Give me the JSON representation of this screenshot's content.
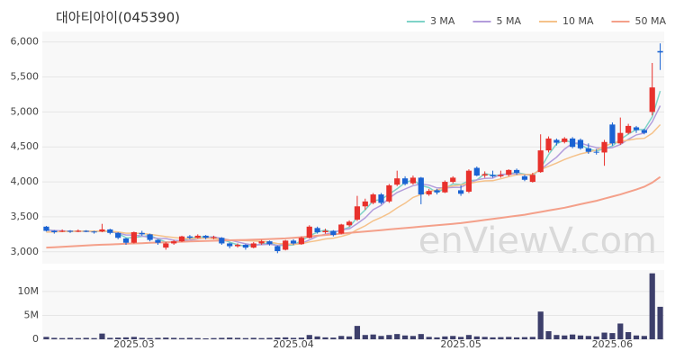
{
  "watermark": "enViewV.com",
  "chart_data": [
    {
      "type": "candlestick",
      "title": "대아티아이(045390)",
      "categories": [
        null,
        null,
        null,
        null,
        null,
        null,
        null,
        null,
        null,
        null,
        null,
        "2025.03",
        null,
        null,
        null,
        null,
        null,
        null,
        null,
        null,
        null,
        null,
        null,
        null,
        null,
        null,
        null,
        null,
        null,
        null,
        null,
        "2025.04",
        null,
        null,
        null,
        null,
        null,
        null,
        null,
        null,
        null,
        null,
        null,
        null,
        null,
        null,
        null,
        null,
        null,
        null,
        null,
        null,
        "2025.05",
        null,
        null,
        null,
        null,
        null,
        null,
        null,
        null,
        null,
        null,
        null,
        null,
        null,
        null,
        null,
        null,
        null,
        null,
        "2025.06",
        null,
        null,
        null,
        null,
        null,
        null
      ],
      "open": [
        3360,
        3300,
        3290,
        3300,
        3290,
        3300,
        3290,
        3290,
        3320,
        3270,
        3190,
        3130,
        3270,
        3250,
        3170,
        3060,
        3120,
        3150,
        3220,
        3200,
        3230,
        3200,
        3200,
        3120,
        3080,
        3100,
        3060,
        3120,
        3150,
        3080,
        3030,
        3160,
        3110,
        3200,
        3340,
        3280,
        3300,
        3260,
        3380,
        3460,
        3650,
        3700,
        3820,
        3720,
        3960,
        4050,
        3980,
        4060,
        3820,
        3880,
        3850,
        4000,
        3880,
        3860,
        4200,
        4090,
        4100,
        4080,
        4100,
        4170,
        4080,
        4000,
        4140,
        4450,
        4600,
        4570,
        4620,
        4600,
        4480,
        4430,
        4420,
        4820,
        4550,
        4700,
        4780,
        4740,
        5000,
        5870
      ],
      "high": [
        3370,
        3310,
        3320,
        3310,
        3320,
        3310,
        3300,
        3400,
        3330,
        3280,
        3200,
        3290,
        3300,
        3260,
        3180,
        3140,
        3170,
        3230,
        3240,
        3250,
        3240,
        3230,
        3210,
        3130,
        3120,
        3110,
        3140,
        3170,
        3160,
        3090,
        3170,
        3180,
        3220,
        3380,
        3360,
        3330,
        3310,
        3400,
        3450,
        3800,
        3760,
        3840,
        3840,
        3970,
        4160,
        4080,
        4090,
        4070,
        3900,
        3900,
        4020,
        4080,
        3950,
        4180,
        4220,
        4150,
        4160,
        4160,
        4180,
        4190,
        4100,
        4130,
        4680,
        4650,
        4620,
        4640,
        4640,
        4620,
        4550,
        4470,
        4600,
        4850,
        4920,
        4830,
        4800,
        4760,
        5700,
        5980
      ],
      "low": [
        3290,
        3260,
        3280,
        3270,
        3280,
        3280,
        3260,
        3280,
        3250,
        3180,
        3100,
        3120,
        3230,
        3150,
        3100,
        3030,
        3100,
        3140,
        3180,
        3190,
        3180,
        3180,
        3100,
        3050,
        3060,
        3030,
        3050,
        3100,
        3090,
        2980,
        3020,
        3100,
        3100,
        3190,
        3260,
        3260,
        3220,
        3250,
        3360,
        3440,
        3600,
        3680,
        3680,
        3700,
        3940,
        3950,
        3960,
        3680,
        3800,
        3820,
        3840,
        3980,
        3800,
        3840,
        4080,
        4060,
        4060,
        4060,
        4080,
        4100,
        4010,
        3990,
        4130,
        4420,
        4520,
        4550,
        4480,
        4460,
        4400,
        4390,
        4230,
        4520,
        4530,
        4680,
        4700,
        4680,
        4950,
        5600
      ],
      "close": [
        3300,
        3280,
        3300,
        3290,
        3300,
        3290,
        3280,
        3320,
        3270,
        3200,
        3130,
        3280,
        3250,
        3170,
        3130,
        3120,
        3150,
        3220,
        3200,
        3230,
        3200,
        3210,
        3120,
        3080,
        3100,
        3060,
        3120,
        3150,
        3110,
        3010,
        3160,
        3120,
        3200,
        3360,
        3280,
        3300,
        3240,
        3390,
        3430,
        3650,
        3720,
        3820,
        3700,
        3950,
        4050,
        3970,
        4060,
        3820,
        3870,
        3850,
        4000,
        4060,
        3830,
        4160,
        4090,
        4110,
        4080,
        4100,
        4170,
        4130,
        4030,
        4100,
        4450,
        4620,
        4560,
        4620,
        4500,
        4480,
        4430,
        4420,
        4570,
        4550,
        4700,
        4800,
        4740,
        4700,
        5350,
        5850
      ],
      "series": [
        {
          "name": "3 MA",
          "color": "#7fd3c8",
          "values": [
            3320,
            3300,
            3293,
            3290,
            3297,
            3293,
            3290,
            3297,
            3290,
            3263,
            3200,
            3203,
            3220,
            3233,
            3183,
            3140,
            3133,
            3163,
            3190,
            3217,
            3210,
            3213,
            3177,
            3137,
            3100,
            3080,
            3093,
            3110,
            3127,
            3090,
            3093,
            3097,
            3160,
            3227,
            3280,
            3313,
            3273,
            3310,
            3353,
            3490,
            3600,
            3730,
            3747,
            3823,
            3900,
            3990,
            4027,
            3950,
            3917,
            3847,
            3907,
            3970,
            3963,
            4017,
            4027,
            4120,
            4093,
            4097,
            4117,
            4133,
            4110,
            4087,
            4193,
            4390,
            4543,
            4600,
            4560,
            4533,
            4470,
            4443,
            4473,
            4513,
            4607,
            4683,
            4747,
            4747,
            4930,
            5300
          ]
        },
        {
          "name": "5 MA",
          "color": "#b39ddb",
          "values": [
            3310,
            3305,
            3300,
            3295,
            3294,
            3292,
            3292,
            3298,
            3292,
            3272,
            3240,
            3240,
            3226,
            3206,
            3192,
            3190,
            3164,
            3158,
            3164,
            3184,
            3200,
            3212,
            3192,
            3168,
            3142,
            3114,
            3096,
            3102,
            3108,
            3090,
            3110,
            3110,
            3120,
            3170,
            3224,
            3252,
            3276,
            3314,
            3328,
            3402,
            3486,
            3602,
            3664,
            3768,
            3848,
            3898,
            3946,
            3970,
            3954,
            3914,
            3914,
            3920,
            3922,
            3980,
            4028,
            4050,
            4054,
            4108,
            4110,
            4118,
            4102,
            4106,
            4176,
            4266,
            4352,
            4470,
            4550,
            4556,
            4518,
            4490,
            4480,
            4490,
            4534,
            4608,
            4672,
            4698,
            4858,
            5088
          ]
        },
        {
          "name": "10 MA",
          "color": "#f5c28a",
          "values": [
            3280,
            3285,
            3290,
            3292,
            3294,
            3295,
            3294,
            3296,
            3294,
            3283,
            3266,
            3266,
            3263,
            3250,
            3234,
            3217,
            3204,
            3194,
            3187,
            3190,
            3197,
            3190,
            3177,
            3168,
            3165,
            3159,
            3156,
            3149,
            3140,
            3118,
            3114,
            3105,
            3114,
            3142,
            3160,
            3184,
            3196,
            3220,
            3252,
            3316,
            3372,
            3442,
            3492,
            3551,
            3628,
            3695,
            3777,
            3820,
            3864,
            3884,
            3919,
            3943,
            3956,
            3977,
            4000,
            4014,
            4016,
            4044,
            4074,
            4102,
            4105,
            4109,
            4176,
            4222,
            4269,
            4320,
            4362,
            4400,
            4426,
            4455,
            4509,
            4554,
            4579,
            4597,
            4615,
            4623,
            4696,
            4818
          ]
        },
        {
          "name": "50 MA",
          "color": "#f4a08a",
          "values": [
            3060,
            3066,
            3072,
            3078,
            3084,
            3090,
            3096,
            3101,
            3106,
            3111,
            3116,
            3120,
            3124,
            3128,
            3132,
            3136,
            3140,
            3144,
            3148,
            3152,
            3155,
            3158,
            3161,
            3164,
            3167,
            3170,
            3174,
            3178,
            3182,
            3187,
            3192,
            3200,
            3210,
            3220,
            3230,
            3240,
            3250,
            3260,
            3270,
            3280,
            3290,
            3300,
            3310,
            3320,
            3330,
            3340,
            3350,
            3360,
            3370,
            3380,
            3390,
            3400,
            3410,
            3425,
            3440,
            3455,
            3470,
            3485,
            3500,
            3515,
            3530,
            3550,
            3570,
            3590,
            3610,
            3630,
            3655,
            3680,
            3705,
            3730,
            3760,
            3790,
            3820,
            3855,
            3890,
            3930,
            3990,
            4070
          ]
        }
      ],
      "up_color": "#e8312c",
      "down_color": "#1a63d3",
      "ylim": [
        2830,
        6150
      ],
      "yticks": [
        {
          "value": 3000,
          "label": "3,000"
        },
        {
          "value": 3500,
          "label": "3,500"
        },
        {
          "value": 4000,
          "label": "4,000"
        },
        {
          "value": 4500,
          "label": "4,500"
        },
        {
          "value": 5000,
          "label": "5,000"
        },
        {
          "value": 5500,
          "label": "5,500"
        },
        {
          "value": 6000,
          "label": "6,000"
        }
      ],
      "grid": true,
      "legend": "top-right"
    },
    {
      "type": "bar",
      "color": "#3d3f6b",
      "values": [
        500000,
        300000,
        250000,
        300000,
        250000,
        300000,
        250000,
        1200000,
        300000,
        350000,
        400000,
        500000,
        300000,
        250000,
        300000,
        350000,
        300000,
        250000,
        300000,
        250000,
        200000,
        250000,
        300000,
        350000,
        300000,
        250000,
        300000,
        250000,
        300000,
        350000,
        400000,
        300000,
        350000,
        900000,
        600000,
        400000,
        350000,
        700000,
        600000,
        2800000,
        900000,
        1000000,
        700000,
        900000,
        1100000,
        800000,
        700000,
        1100000,
        500000,
        400000,
        600000,
        700000,
        500000,
        900000,
        600000,
        500000,
        400000,
        450000,
        500000,
        400000,
        450000,
        500000,
        5800000,
        1700000,
        900000,
        800000,
        1000000,
        800000,
        700000,
        600000,
        1400000,
        1300000,
        3300000,
        1500000,
        800000,
        700000,
        13800000,
        6800000
      ],
      "ylim": [
        0,
        14500000
      ],
      "yticks": [
        0,
        {
          "value": 5000000,
          "label": "5M"
        },
        {
          "value": 10000000,
          "label": "10M"
        }
      ],
      "grid": true
    }
  ]
}
